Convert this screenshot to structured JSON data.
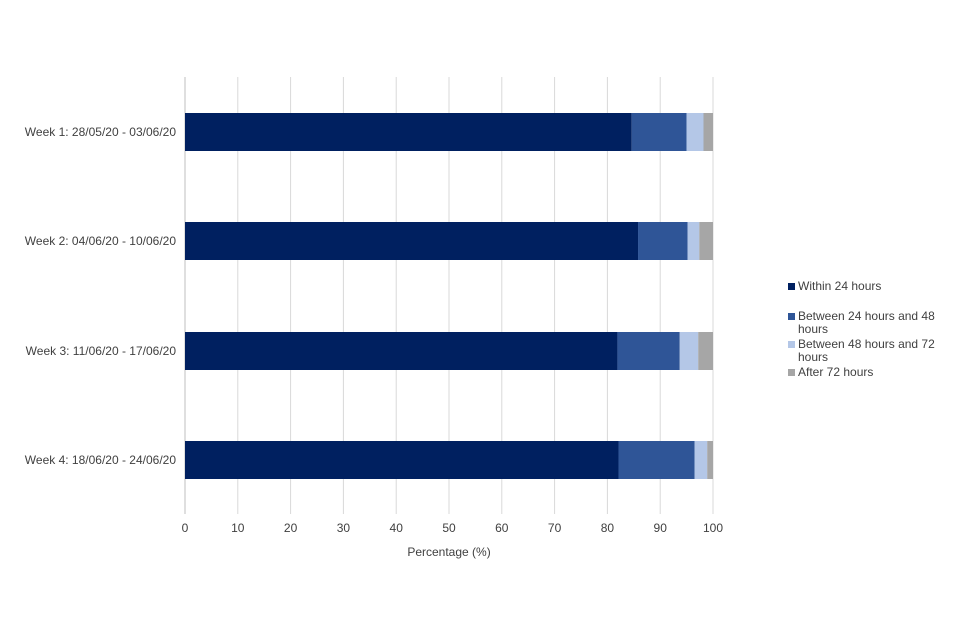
{
  "chart_data": {
    "type": "bar",
    "orientation": "horizontal",
    "stacked": true,
    "title": "",
    "xlabel": "Percentage (%)",
    "ylabel": "",
    "xlim": [
      0,
      100
    ],
    "xticks": [
      0,
      10,
      20,
      30,
      40,
      50,
      60,
      70,
      80,
      90,
      100
    ],
    "grid": true,
    "legend_position": "right",
    "categories": [
      "Week 1: 28/05/20 - 03/06/20",
      "Week 2: 04/06/20 - 10/06/20",
      "Week 3: 11/06/20 - 17/06/20",
      "Week 4: 18/06/20 - 24/06/20"
    ],
    "series": [
      {
        "name": "Within 24 hours",
        "color": "#002060",
        "values": [
          84.6,
          85.8,
          81.9,
          82.1
        ]
      },
      {
        "name": "Between 24 hours and 48 hours",
        "color": "#2f5597",
        "values": [
          10.4,
          9.4,
          11.8,
          14.4
        ]
      },
      {
        "name": "Between 48 hours and 72 hours",
        "color": "#b4c7e7",
        "values": [
          3.2,
          2.2,
          3.5,
          2.4
        ]
      },
      {
        "name": "After 72 hours",
        "color": "#a6a6a6",
        "values": [
          1.8,
          2.6,
          2.8,
          1.1
        ]
      }
    ]
  },
  "legend": {
    "items": [
      {
        "lines": [
          "Within 24 hours"
        ]
      },
      {
        "lines": [
          "Between 24 hours and 48",
          "hours"
        ]
      },
      {
        "lines": [
          "Between 48 hours and 72",
          "hours"
        ]
      },
      {
        "lines": [
          "After 72 hours"
        ]
      }
    ]
  }
}
